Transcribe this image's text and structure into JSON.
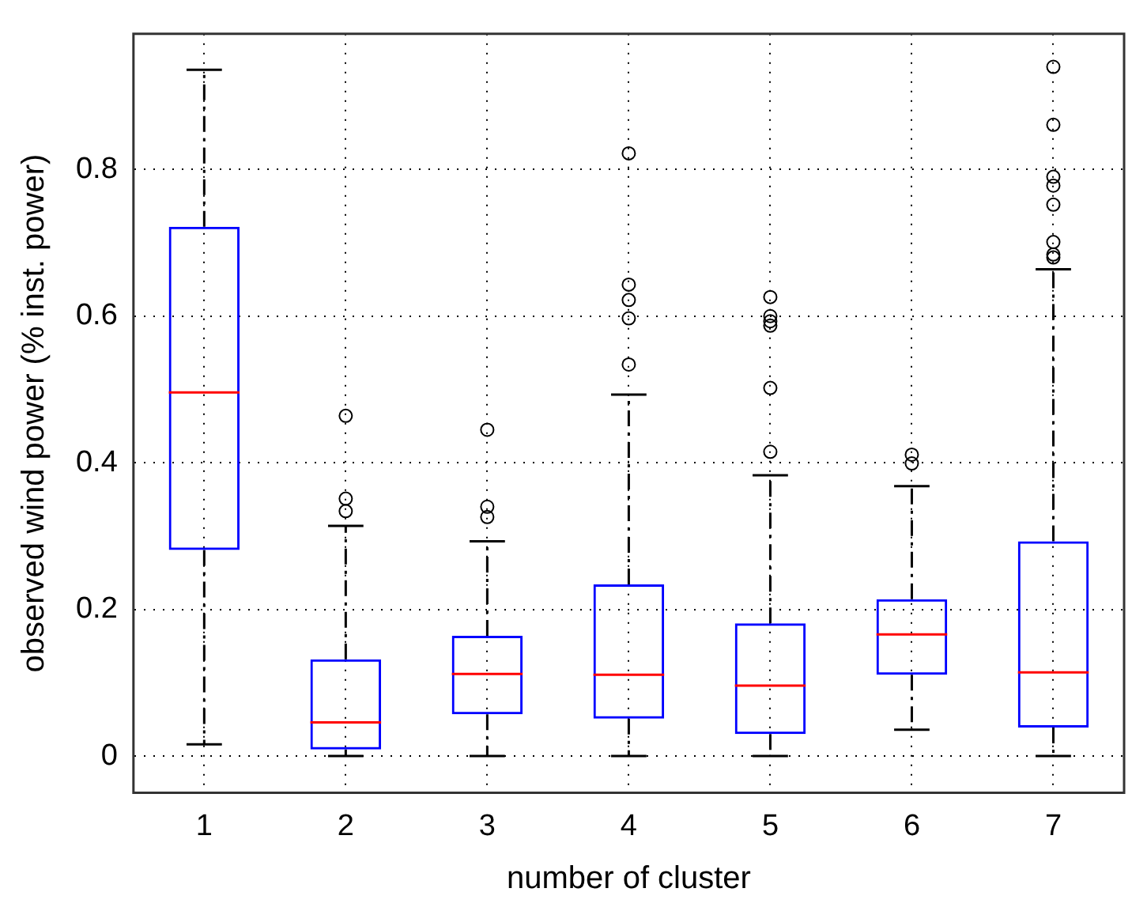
{
  "chart_data": {
    "type": "box",
    "xlabel": "number of cluster",
    "ylabel": "observed wind power (% inst. power)",
    "categories": [
      "1",
      "2",
      "3",
      "4",
      "5",
      "6",
      "7"
    ],
    "ylim": [
      -0.05,
      0.985
    ],
    "yticks": [
      0,
      0.2,
      0.4,
      0.6,
      0.8
    ],
    "grid": true,
    "marker": "circle",
    "legend": false,
    "color": "#0000ff",
    "boxes": [
      {
        "low": 0.016,
        "q1": 0.281,
        "median": 0.496,
        "q3": 0.722,
        "high": 0.936
      },
      {
        "low": 0,
        "q1": 0.009,
        "median": 0.046,
        "q3": 0.132,
        "high": 0.314,
        "outliers": [
          0.464,
          0.351,
          0.334
        ]
      },
      {
        "low": 0,
        "q1": 0.057,
        "median": 0.112,
        "q3": 0.164,
        "high": 0.293,
        "outliers": [
          0.445,
          0.34,
          0.326
        ]
      },
      {
        "low": 0,
        "q1": 0.051,
        "median": 0.111,
        "q3": 0.234,
        "high": 0.493,
        "outliers": [
          0.822,
          0.643,
          0.622,
          0.597,
          0.534
        ]
      },
      {
        "low": 0,
        "q1": 0.03,
        "median": 0.096,
        "q3": 0.181,
        "high": 0.383,
        "outliers": [
          0.626,
          0.6,
          0.593,
          0.587,
          0.502,
          0.415
        ]
      },
      {
        "low": 0.036,
        "q1": 0.111,
        "median": 0.166,
        "q3": 0.214,
        "high": 0.368,
        "outliers": [
          0.411,
          0.399
        ]
      },
      {
        "low": 0,
        "q1": 0.039,
        "median": 0.114,
        "q3": 0.293,
        "high": 0.664,
        "outliers": [
          0.94,
          0.861,
          0.79,
          0.778,
          0.752,
          0.701,
          0.684,
          0.68
        ]
      }
    ]
  }
}
